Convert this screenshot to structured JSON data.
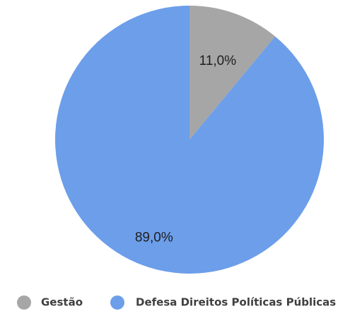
{
  "chart_data": {
    "type": "pie",
    "title": "",
    "categories": [
      "Gestão",
      "Defesa Direitos Políticas Públicas"
    ],
    "values": [
      11.0,
      89.0
    ],
    "data_labels": [
      "11,0%",
      "89,0%"
    ],
    "colors": [
      "#a6a6a6",
      "#6c9eea"
    ],
    "start_angle_deg": 0,
    "direction": "clockwise",
    "legend": {
      "placement": "bottom",
      "entries": [
        "Gestão",
        "Defesa Direitos Políticas Públicas"
      ]
    }
  }
}
